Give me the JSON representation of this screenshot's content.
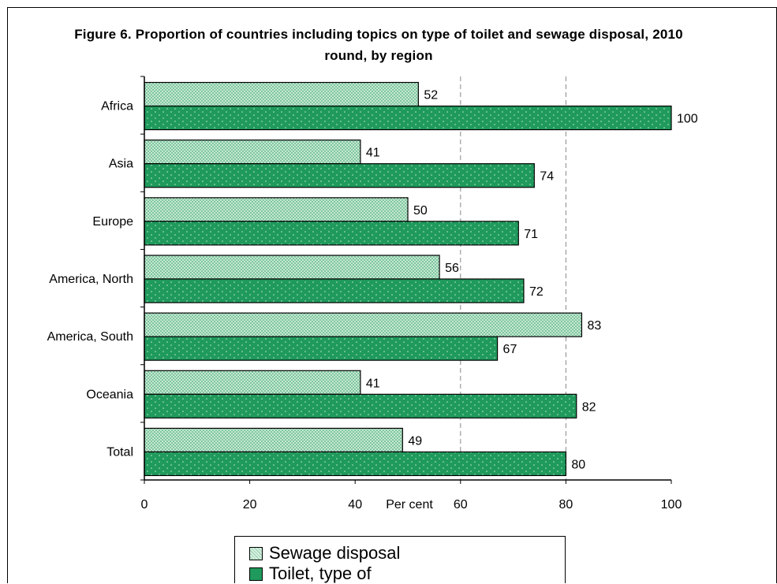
{
  "chart_data": {
    "type": "bar",
    "orientation": "horizontal",
    "title": "Figure 6. Proportion of countries including topics on type of toilet and sewage disposal, 2010 round, by region",
    "xlabel": "Per cent",
    "ylabel": "",
    "xlim": [
      0,
      100
    ],
    "x_ticks": [
      "0",
      "20",
      "40",
      "60",
      "80",
      "100"
    ],
    "categories": [
      "Africa",
      "Asia",
      "Europe",
      "America, North",
      "America, South",
      "Oceania",
      "Total"
    ],
    "series": [
      {
        "name": "Sewage disposal",
        "values": [
          52,
          41,
          50,
          56,
          83,
          41,
          49
        ],
        "color": "#c8ead6",
        "pattern": "crosshatch"
      },
      {
        "name": "Toilet, type of",
        "values": [
          100,
          74,
          71,
          72,
          67,
          82,
          80
        ],
        "color": "#1f9a5c",
        "pattern": "dots"
      }
    ],
    "gridlines": "vertical dashed at 60 and 80",
    "legend_position": "bottom-center"
  }
}
